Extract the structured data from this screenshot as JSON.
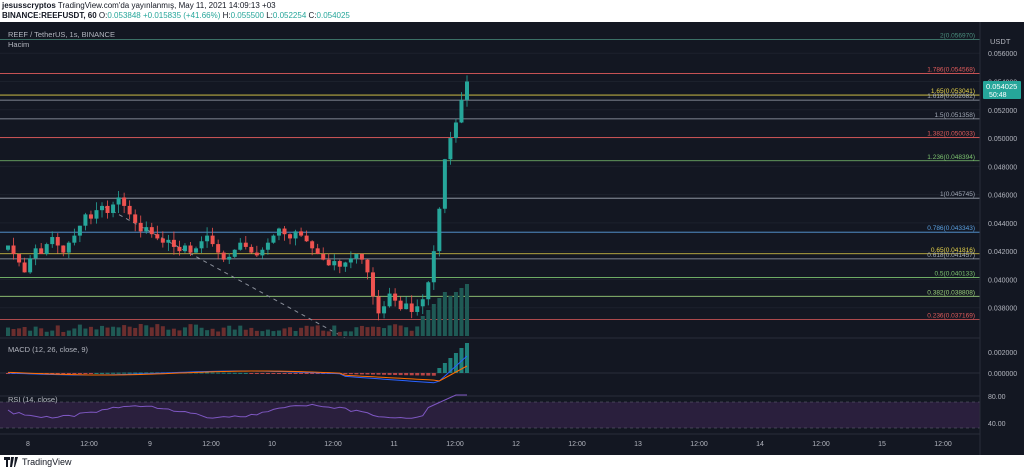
{
  "header": {
    "author": "jesusscryptos",
    "published": "TradingView.com'da yayınlanmış, May 11, 2021 14:09:13 +03",
    "symbol": "BINANCE:REEFUSDT, 60",
    "open_label": "O:",
    "open": "0.053848",
    "change": "+0.015835 (+41.66%)",
    "high_label": "H:",
    "high": "0.055500",
    "low_label": "L:",
    "low": "0.052254",
    "close_label": "C:",
    "close": "0.054025"
  },
  "legend": {
    "pair": "REEF / TetherUS, 1s, BINANCE",
    "volume": "Hacim",
    "macd": "MACD (12, 26, close, 9)",
    "rsi": "RSI (14, close)"
  },
  "price_axis": {
    "currency": "USDT",
    "ticks": [
      "0.056000",
      "0.054000",
      "0.052000",
      "0.050000",
      "0.048000",
      "0.046000",
      "0.044000",
      "0.042000",
      "0.040000",
      "0.038000"
    ],
    "last_price": "0.054025",
    "countdown": "50:48",
    "macd_ticks": [
      "0.002000",
      "0.000000"
    ],
    "rsi_ticks": [
      "80.00",
      "40.00"
    ]
  },
  "fib_levels": [
    {
      "label": "2(0.056970)",
      "color": "#4a8f7e"
    },
    {
      "label": "1.786(0.054568)",
      "color": "#e05b5b"
    },
    {
      "label": "1.65(0.053041)",
      "color": "#e6d34a"
    },
    {
      "label": "1.618(0.052682)",
      "color": "#a0a7b4"
    },
    {
      "label": "1.5(0.051358)",
      "color": "#a0a7b4"
    },
    {
      "label": "1.382(0.050033)",
      "color": "#e05b5b"
    },
    {
      "label": "1.236(0.048394)",
      "color": "#7cc36f"
    },
    {
      "label": "1(0.045745)",
      "color": "#a0a7b4"
    },
    {
      "label": "0.786(0.043343)",
      "color": "#5aa0e0"
    },
    {
      "label": "0.65(0.041816)",
      "color": "#e6d34a"
    },
    {
      "label": "0.618(0.041457)",
      "color": "#a0a7b4"
    },
    {
      "label": "0.5(0.040133)",
      "color": "#7cc36f"
    },
    {
      "label": "0.382(0.038808)",
      "color": "#9bd07a"
    },
    {
      "label": "0.236(0.037169)",
      "color": "#e05b5b"
    }
  ],
  "time_axis": [
    "8",
    "12:00",
    "9",
    "12:00",
    "10",
    "12:00",
    "11",
    "12:00",
    "12",
    "12:00",
    "13",
    "12:00",
    "14",
    "12:00",
    "15",
    "12:00"
  ],
  "footer": {
    "brand": "TradingView"
  },
  "colors": {
    "up": "#26a69a",
    "down": "#ef5350",
    "bg": "#131722",
    "grid": "#1f2430",
    "macd": "#2962ff",
    "signal": "#ff6d00",
    "rsi": "#7e57c2"
  },
  "chart_data": {
    "type": "candlestick",
    "closes": [
      0.0424,
      0.0418,
      0.0412,
      0.0405,
      0.0415,
      0.0422,
      0.0418,
      0.0425,
      0.043,
      0.0424,
      0.0419,
      0.0426,
      0.0431,
      0.0438,
      0.0446,
      0.0443,
      0.0449,
      0.0452,
      0.0447,
      0.0453,
      0.0458,
      0.0452,
      0.0446,
      0.044,
      0.0434,
      0.0437,
      0.0432,
      0.0429,
      0.0426,
      0.0428,
      0.0423,
      0.042,
      0.0424,
      0.0419,
      0.0422,
      0.0427,
      0.0431,
      0.0425,
      0.0419,
      0.0414,
      0.0416,
      0.0421,
      0.0426,
      0.0423,
      0.0419,
      0.0417,
      0.0421,
      0.0426,
      0.0431,
      0.0436,
      0.0432,
      0.0429,
      0.0434,
      0.0431,
      0.0427,
      0.0422,
      0.0418,
      0.0414,
      0.041,
      0.0413,
      0.0409,
      0.0412,
      0.0415,
      0.0418,
      0.0414,
      0.0405,
      0.0388,
      0.0376,
      0.0381,
      0.039,
      0.0385,
      0.0379,
      0.0383,
      0.0377,
      0.0381,
      0.0386,
      0.0398,
      0.042,
      0.045,
      0.0485,
      0.05,
      0.0511,
      0.0527,
      0.054
    ],
    "x_range": [
      "May 7",
      "May 15"
    ],
    "y_range": [
      0.036,
      0.0575
    ]
  }
}
